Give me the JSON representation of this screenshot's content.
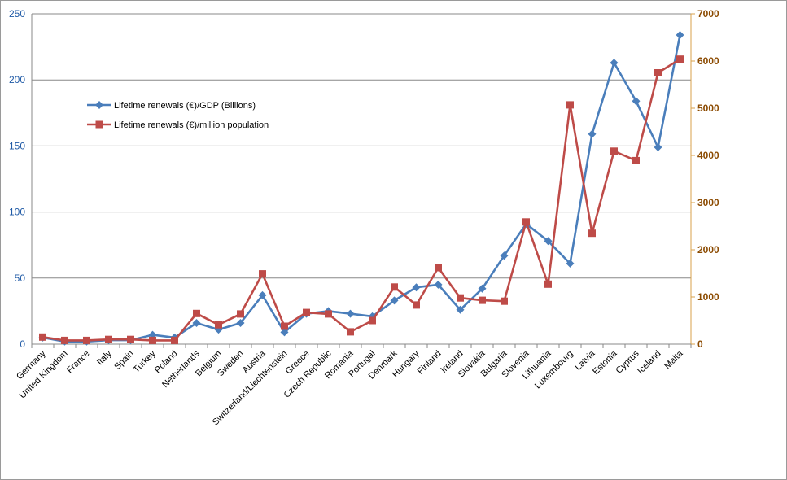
{
  "chart_data": {
    "type": "line",
    "title": "",
    "xlabel": "",
    "ylabel": "",
    "y2label": "",
    "categories": [
      "Germany",
      "United Kingdom",
      "France",
      "Italy",
      "Spain",
      "Turkey",
      "Poland",
      "Netherlands",
      "Belgium",
      "Sweden",
      "Austria",
      "Switzerland/Liechtenstein",
      "Greece",
      "Czech Republic",
      "Romania",
      "Portugal",
      "Denmark",
      "Hungary",
      "Finland",
      "Ireland",
      "Slovakia",
      "Bulgaria",
      "Slovenia",
      "Lithuania",
      "Luxembourg",
      "Latvia",
      "Estonia",
      "Cyprus",
      "Iceland",
      "Malta"
    ],
    "ylim": [
      0,
      250
    ],
    "yticks": [
      "0",
      "50",
      "100",
      "150",
      "200",
      "250"
    ],
    "y2lim": [
      0,
      7000
    ],
    "y2ticks": [
      "0",
      "1000",
      "2000",
      "3000",
      "4000",
      "5000",
      "6000",
      "7000"
    ],
    "grid": true,
    "legend_position": "upper-left (inside plot)",
    "series": [
      {
        "name": "Lifetime renewals (€)/GDP (Billions)",
        "axis": "left",
        "color": "#4a7ebb",
        "marker": "diamond",
        "values": [
          5,
          2,
          2,
          3,
          3,
          7,
          5,
          16,
          11,
          16,
          37,
          9,
          23,
          25,
          23,
          21,
          33,
          43,
          45,
          26,
          42,
          67,
          91,
          78,
          61,
          159,
          213,
          184,
          149,
          234
        ]
      },
      {
        "name": "Lifetime renewals (€)/million population",
        "axis": "right",
        "color": "#be4b48",
        "marker": "square",
        "values": [
          150,
          80,
          80,
          100,
          100,
          80,
          80,
          650,
          410,
          640,
          1490,
          380,
          670,
          640,
          260,
          500,
          1210,
          830,
          1620,
          980,
          930,
          910,
          2590,
          1270,
          5070,
          2350,
          4090,
          3890,
          5750,
          6040
        ]
      }
    ]
  },
  "colors": {
    "left_axis": "#1f5aa6",
    "right_axis": "#8b4a00",
    "right_axis_line": "#d9a24b",
    "grid": "#888888",
    "frame": "#9a9a9a"
  }
}
